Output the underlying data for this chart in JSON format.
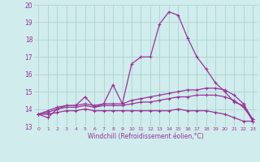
{
  "xlabel": "Windchill (Refroidissement éolien,°C)",
  "bg_color": "#d0ecec",
  "grid_color": "#acd4d4",
  "line_color": "#993399",
  "x_values": [
    0,
    1,
    2,
    3,
    4,
    5,
    6,
    7,
    8,
    9,
    10,
    11,
    12,
    13,
    14,
    15,
    16,
    17,
    18,
    19,
    20,
    21,
    22,
    23
  ],
  "series1": [
    13.7,
    13.5,
    14.0,
    14.2,
    14.2,
    14.7,
    14.1,
    14.3,
    15.4,
    14.3,
    16.6,
    17.0,
    17.0,
    18.9,
    19.6,
    19.4,
    18.1,
    17.0,
    16.3,
    15.5,
    15.0,
    14.4,
    14.2,
    13.3
  ],
  "series2": [
    13.7,
    13.9,
    14.1,
    14.2,
    14.2,
    14.3,
    14.2,
    14.3,
    14.3,
    14.3,
    14.5,
    14.6,
    14.7,
    14.8,
    14.9,
    15.0,
    15.1,
    15.1,
    15.2,
    15.2,
    15.1,
    14.8,
    14.3,
    13.4
  ],
  "series3": [
    13.7,
    13.8,
    14.0,
    14.1,
    14.1,
    14.2,
    14.1,
    14.2,
    14.2,
    14.2,
    14.3,
    14.4,
    14.4,
    14.5,
    14.6,
    14.7,
    14.7,
    14.8,
    14.8,
    14.8,
    14.7,
    14.5,
    14.1,
    13.4
  ],
  "series4": [
    13.7,
    13.7,
    13.8,
    13.9,
    13.9,
    14.0,
    13.9,
    13.9,
    13.9,
    13.9,
    13.9,
    13.9,
    13.9,
    13.9,
    13.9,
    14.0,
    13.9,
    13.9,
    13.9,
    13.8,
    13.7,
    13.5,
    13.3,
    13.3
  ],
  "ylim": [
    13.0,
    20.0
  ],
  "yticks": [
    13,
    14,
    15,
    16,
    17,
    18,
    19,
    20
  ]
}
